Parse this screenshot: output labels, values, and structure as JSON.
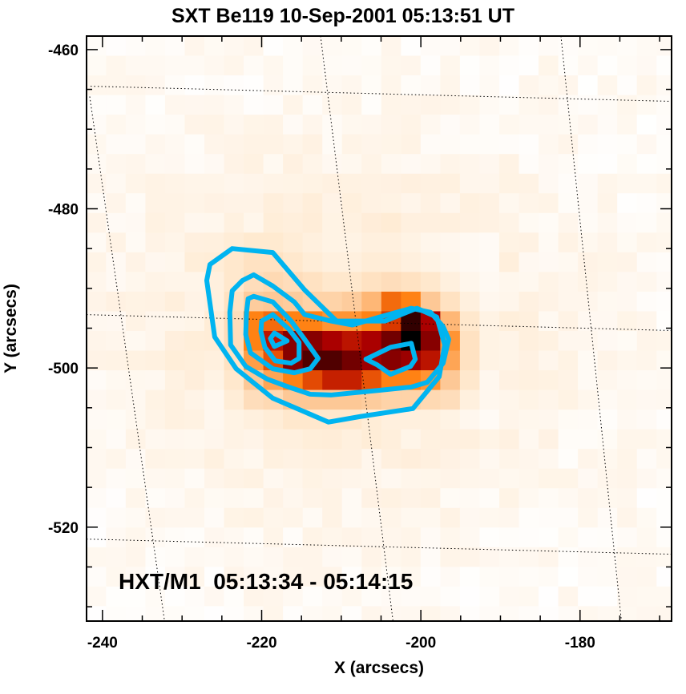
{
  "chart_data": {
    "type": "heatmap",
    "title": "SXT Be119 10-Sep-2001 05:13:51 UT",
    "xlabel": "X (arcsecs)",
    "ylabel": "Y (arcsecs)",
    "xlim": [
      -242,
      -168.5
    ],
    "ylim": [
      -531.8,
      -458.3
    ],
    "xticks": [
      -240,
      -220,
      -200,
      -180
    ],
    "yticks": [
      -460,
      -480,
      -500,
      -520
    ],
    "xtick_labels": [
      "-240",
      "-220",
      "-200",
      "-180"
    ],
    "ytick_labels": [
      "-460",
      "-480",
      "-500",
      "-520"
    ],
    "minor_tick_step": 5,
    "annotation": "HXT/M1  05:13:34 - 05:14:15",
    "colormap": "red-temperature",
    "contour_color": "#00b4f0",
    "heatmap_core": {
      "x0": -227.2,
      "y0": -483.0,
      "pixel_size": 2.47,
      "rows": [
        [
          0.1,
          0.12,
          0.14,
          0.14,
          0.12,
          0.1,
          0.08,
          0.08,
          0.1,
          0.1,
          0.08,
          0.06,
          0.05,
          0.04,
          0.03
        ],
        [
          0.12,
          0.15,
          0.18,
          0.18,
          0.15,
          0.12,
          0.1,
          0.1,
          0.12,
          0.12,
          0.1,
          0.08,
          0.06,
          0.04,
          0.03
        ],
        [
          0.1,
          0.15,
          0.2,
          0.22,
          0.2,
          0.18,
          0.15,
          0.15,
          0.18,
          0.2,
          0.18,
          0.15,
          0.1,
          0.06,
          0.04
        ],
        [
          0.1,
          0.18,
          0.28,
          0.3,
          0.28,
          0.25,
          0.25,
          0.28,
          0.35,
          0.55,
          0.5,
          0.3,
          0.18,
          0.1,
          0.05
        ],
        [
          0.12,
          0.2,
          0.5,
          0.55,
          0.5,
          0.5,
          0.45,
          0.45,
          0.5,
          0.66,
          0.95,
          0.8,
          0.35,
          0.15,
          0.08
        ],
        [
          0.12,
          0.2,
          0.5,
          0.75,
          0.85,
          0.85,
          0.8,
          0.75,
          0.8,
          0.88,
          1.0,
          0.85,
          0.45,
          0.18,
          0.08
        ],
        [
          0.1,
          0.18,
          0.42,
          0.6,
          0.85,
          0.92,
          0.92,
          0.88,
          0.82,
          0.85,
          0.82,
          0.75,
          0.4,
          0.18,
          0.08
        ],
        [
          0.08,
          0.15,
          0.3,
          0.4,
          0.5,
          0.62,
          0.72,
          0.72,
          0.6,
          0.5,
          0.5,
          0.45,
          0.3,
          0.15,
          0.05
        ],
        [
          0.05,
          0.12,
          0.2,
          0.22,
          0.3,
          0.3,
          0.3,
          0.3,
          0.28,
          0.25,
          0.25,
          0.22,
          0.2,
          0.1,
          0.05
        ],
        [
          0.05,
          0.08,
          0.1,
          0.12,
          0.15,
          0.15,
          0.15,
          0.15,
          0.12,
          0.1,
          0.1,
          0.1,
          0.08,
          0.05,
          0.03
        ]
      ]
    },
    "contours": [
      [
        [
          -226.5,
          -487.0
        ],
        [
          -223.7,
          -485.0
        ],
        [
          -218.6,
          -485.5
        ],
        [
          -214.6,
          -490.2
        ],
        [
          -210.6,
          -494.1
        ],
        [
          -204.5,
          -494.1
        ],
        [
          -200.5,
          -492.5
        ],
        [
          -198.0,
          -493.6
        ],
        [
          -197.0,
          -497.1
        ],
        [
          -197.7,
          -501.1
        ],
        [
          -201.0,
          -505.1
        ],
        [
          -207.6,
          -506.1
        ],
        [
          -211.6,
          -506.8
        ],
        [
          -218.6,
          -503.8
        ],
        [
          -223.2,
          -500.1
        ],
        [
          -225.9,
          -496.1
        ],
        [
          -226.9,
          -489.0
        ]
      ],
      [
        [
          -221.0,
          -488.3
        ],
        [
          -218.6,
          -489.7
        ],
        [
          -215.9,
          -491.7
        ],
        [
          -214.6,
          -493.3
        ],
        [
          -211.3,
          -494.1
        ],
        [
          -208.6,
          -494.6
        ],
        [
          -205.2,
          -493.6
        ],
        [
          -201.2,
          -492.5
        ],
        [
          -198.8,
          -493.0
        ],
        [
          -197.2,
          -494.8
        ],
        [
          -196.5,
          -496.4
        ],
        [
          -197.2,
          -499.4
        ],
        [
          -199.2,
          -501.8
        ],
        [
          -201.2,
          -502.4
        ],
        [
          -205.2,
          -502.8
        ],
        [
          -211.3,
          -503.4
        ],
        [
          -213.9,
          -503.3
        ],
        [
          -216.6,
          -502.4
        ],
        [
          -219.3,
          -501.4
        ],
        [
          -222.0,
          -499.8
        ],
        [
          -223.9,
          -497.1
        ],
        [
          -224.0,
          -493.0
        ],
        [
          -223.7,
          -490.3
        ],
        [
          -222.4,
          -489.0
        ]
      ],
      [
        [
          -221.7,
          -491.3
        ],
        [
          -221.0,
          -491.0
        ],
        [
          -218.6,
          -491.7
        ],
        [
          -216.3,
          -494.1
        ],
        [
          -214.6,
          -496.4
        ],
        [
          -212.9,
          -498.8
        ],
        [
          -213.9,
          -500.1
        ],
        [
          -215.9,
          -500.6
        ],
        [
          -218.6,
          -500.1
        ],
        [
          -221.4,
          -498.1
        ],
        [
          -222.0,
          -495.8
        ],
        [
          -221.9,
          -493.0
        ]
      ],
      [
        [
          -220.0,
          -494.1
        ],
        [
          -218.6,
          -493.3
        ],
        [
          -216.6,
          -495.1
        ],
        [
          -215.3,
          -496.8
        ],
        [
          -215.3,
          -498.8
        ],
        [
          -216.3,
          -499.4
        ],
        [
          -218.3,
          -499.1
        ],
        [
          -219.6,
          -497.4
        ],
        [
          -220.1,
          -495.4
        ]
      ],
      [
        [
          -218.9,
          -496.3
        ],
        [
          -218.4,
          -495.6
        ],
        [
          -216.8,
          -496.6
        ],
        [
          -218.4,
          -497.3
        ]
      ],
      [
        [
          -206.9,
          -498.9
        ],
        [
          -203.8,
          -497.4
        ],
        [
          -201.2,
          -496.9
        ],
        [
          -200.7,
          -498.9
        ],
        [
          -201.3,
          -499.8
        ],
        [
          -203.8,
          -500.8
        ],
        [
          -205.5,
          -499.6
        ]
      ]
    ],
    "helio_grid": [
      [
        [
          -241.5,
          -464.6
        ],
        [
          -168.8,
          -466.5
        ]
      ],
      [
        [
          -242.0,
          -493.3
        ],
        [
          -168.5,
          -495.3
        ]
      ],
      [
        [
          -242.0,
          -521.5
        ],
        [
          -168.5,
          -523.4
        ]
      ],
      [
        [
          -241.6,
          -465.9
        ],
        [
          -232.2,
          -531.8
        ]
      ],
      [
        [
          -212.6,
          -458.3
        ],
        [
          -203.5,
          -531.8
        ]
      ],
      [
        [
          -182.4,
          -458.3
        ],
        [
          -174.8,
          -531.8
        ]
      ]
    ]
  }
}
